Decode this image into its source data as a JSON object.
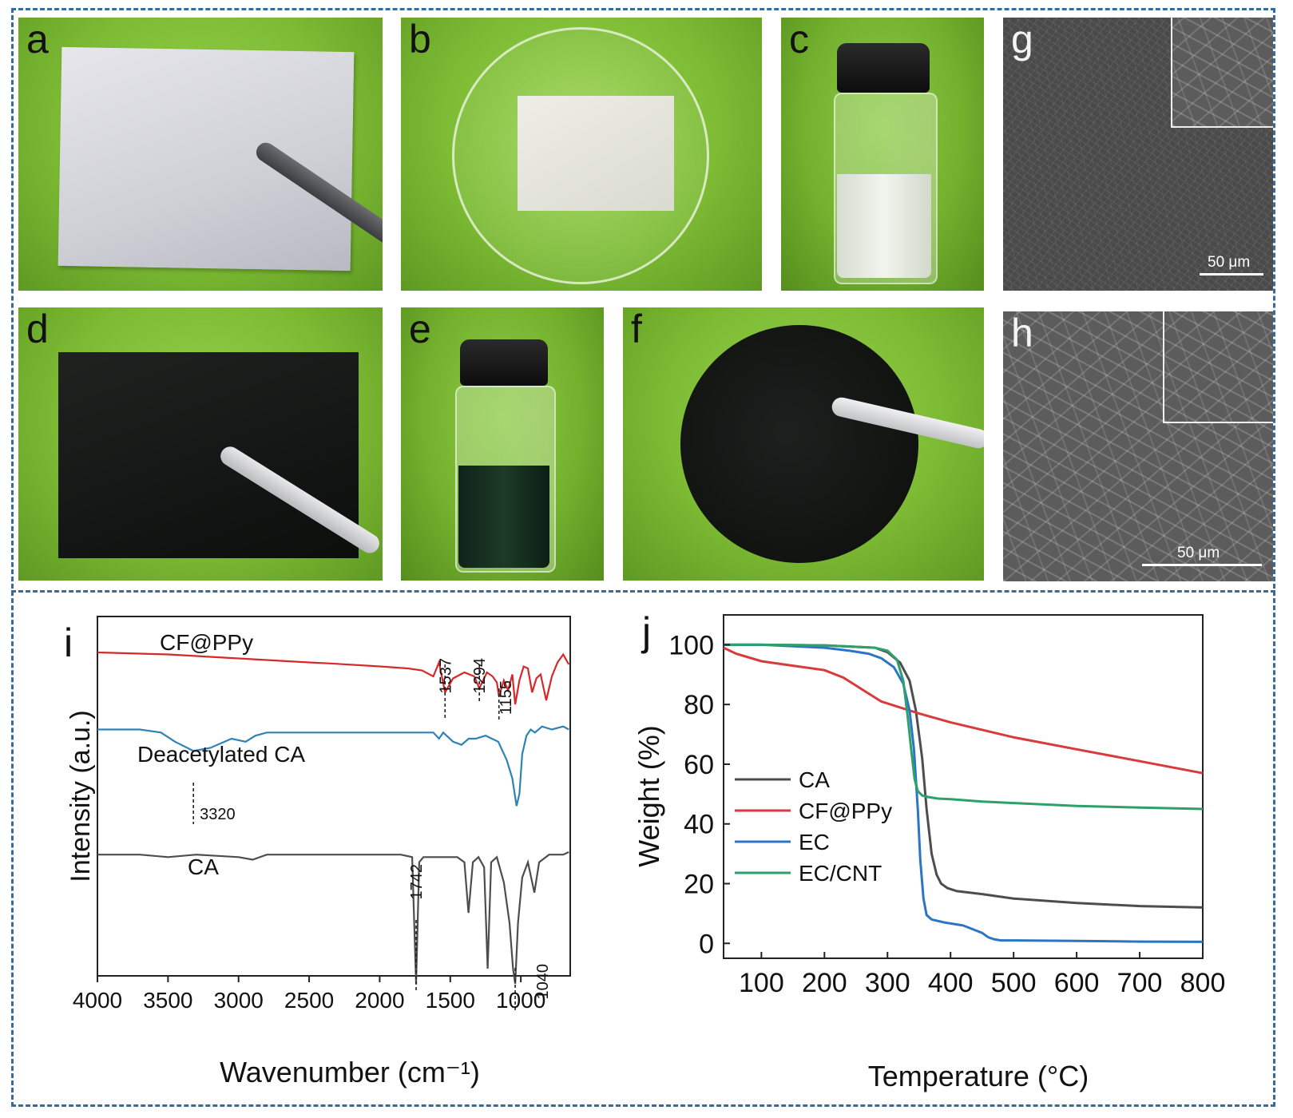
{
  "panels": {
    "a": {
      "label": "a"
    },
    "b": {
      "label": "b"
    },
    "c": {
      "label": "c"
    },
    "d": {
      "label": "d"
    },
    "e": {
      "label": "e"
    },
    "f": {
      "label": "f"
    },
    "g": {
      "label": "g",
      "scale": "50 μm"
    },
    "h": {
      "label": "h",
      "scale": "50 μm"
    },
    "i": {
      "label": "i"
    },
    "j": {
      "label": "j"
    }
  },
  "chart_data": [
    {
      "type": "line",
      "panel": "i",
      "xlabel": "Wavenumber (cm⁻¹)",
      "ylabel": "Intensity (a.u.)",
      "x_reversed": true,
      "xlim": [
        4000,
        650
      ],
      "xticks": [
        4000,
        3500,
        3000,
        2500,
        2000,
        1500,
        1000
      ],
      "series": [
        {
          "name": "CF@PPy",
          "color": "#d42a2a",
          "x": [
            4000,
            3500,
            3000,
            2500,
            2350,
            2000,
            1800,
            1700,
            1620,
            1580,
            1537,
            1480,
            1400,
            1330,
            1294,
            1240,
            1200,
            1170,
            1155,
            1120,
            1090,
            1060,
            1040,
            1010,
            980,
            950,
            920,
            890,
            860,
            820,
            780,
            740,
            700,
            660
          ],
          "y": [
            86,
            85,
            83,
            81,
            80.5,
            79,
            78,
            77,
            74,
            81,
            66,
            73,
            76,
            74,
            68,
            76,
            74,
            71,
            64,
            72,
            67,
            75,
            60,
            72,
            79,
            78,
            66,
            73,
            75,
            62,
            74,
            81,
            85,
            80
          ]
        },
        {
          "name": "Deacetylated CA",
          "color": "#2f82b5",
          "x": [
            4000,
            3700,
            3550,
            3450,
            3320,
            3200,
            3050,
            2950,
            2880,
            2800,
            2500,
            2000,
            1700,
            1620,
            1580,
            1550,
            1480,
            1420,
            1370,
            1320,
            1250,
            1160,
            1100,
            1060,
            1030,
            1010,
            990,
            960,
            930,
            900,
            850,
            780,
            700,
            660
          ],
          "y": [
            52,
            52,
            51,
            48,
            45,
            46,
            49,
            48,
            50,
            51,
            51,
            51,
            51,
            51,
            49,
            51,
            48,
            47,
            49,
            49,
            50,
            48,
            42,
            36,
            27,
            31,
            44,
            50,
            52,
            51,
            53,
            52,
            53,
            52
          ]
        },
        {
          "name": "CA",
          "color": "#4d4d4d",
          "x": [
            4000,
            3700,
            3500,
            3300,
            3000,
            2900,
            2800,
            2500,
            2000,
            1850,
            1770,
            1742,
            1720,
            1690,
            1600,
            1450,
            1400,
            1371,
            1340,
            1300,
            1260,
            1235,
            1210,
            1170,
            1120,
            1080,
            1055,
            1040,
            1020,
            990,
            950,
            904,
            870,
            800,
            700,
            660
          ],
          "y": [
            25.5,
            25.5,
            25,
            25.5,
            25,
            24.5,
            25.5,
            25.5,
            25.5,
            25.5,
            25,
            0,
            24,
            25,
            25,
            25,
            24,
            14,
            24,
            25,
            23,
            3,
            24,
            25,
            20,
            12,
            3,
            0,
            12,
            21,
            24,
            18,
            24,
            25.5,
            25.5,
            26
          ]
        }
      ],
      "annotations": [
        {
          "text": "1537",
          "x": 1537
        },
        {
          "text": "1294",
          "x": 1294
        },
        {
          "text": "1155",
          "x": 1155
        },
        {
          "text": "3320",
          "x": 3320
        },
        {
          "text": "1742",
          "x": 1742
        },
        {
          "text": "1040",
          "x": 1040
        }
      ]
    },
    {
      "type": "line",
      "panel": "j",
      "xlabel": "Temperature (°C)",
      "ylabel": "Weight (%)",
      "xlim": [
        40,
        800
      ],
      "ylim": [
        -5,
        110
      ],
      "xticks": [
        100,
        200,
        300,
        400,
        500,
        600,
        700,
        800
      ],
      "yticks": [
        0,
        20,
        40,
        60,
        80,
        100
      ],
      "legend": "center-left",
      "series": [
        {
          "name": "CA",
          "color": "#4d4d4d",
          "x": [
            40,
            100,
            200,
            280,
            300,
            320,
            335,
            345,
            355,
            362,
            370,
            378,
            385,
            395,
            410,
            450,
            500,
            600,
            700,
            800
          ],
          "y": [
            100,
            100,
            99.8,
            99,
            97.5,
            94,
            88,
            78,
            62,
            45,
            30,
            23,
            20,
            18.5,
            17.5,
            16.5,
            15,
            13.5,
            12.5,
            12
          ]
        },
        {
          "name": "CF@PPy",
          "color": "#d93a3a",
          "x": [
            40,
            60,
            100,
            150,
            200,
            230,
            260,
            290,
            320,
            350,
            400,
            500,
            600,
            700,
            800
          ],
          "y": [
            99,
            97,
            94.5,
            93,
            91.5,
            89,
            85,
            81,
            79,
            77,
            74,
            69,
            65,
            61,
            57
          ]
        },
        {
          "name": "EC",
          "color": "#2c75c4",
          "x": [
            40,
            100,
            200,
            240,
            270,
            290,
            310,
            325,
            335,
            342,
            348,
            352,
            357,
            362,
            370,
            390,
            420,
            450,
            460,
            470,
            480,
            500,
            600,
            700,
            800
          ],
          "y": [
            100,
            100,
            99,
            98,
            97,
            95.5,
            92.5,
            87,
            78,
            65,
            45,
            28,
            15,
            9.5,
            8,
            7,
            6,
            3.5,
            2,
            1.3,
            1,
            1,
            0.8,
            0.6,
            0.5
          ]
        },
        {
          "name": "EC/CNT",
          "color": "#2ea06a",
          "x": [
            40,
            100,
            200,
            280,
            300,
            315,
            325,
            332,
            338,
            343,
            348,
            355,
            365,
            380,
            400,
            450,
            500,
            600,
            700,
            800
          ],
          "y": [
            100,
            100,
            99.8,
            99,
            98,
            95,
            88,
            76,
            64,
            55,
            51,
            49.5,
            49,
            48.5,
            48.3,
            47.5,
            47,
            46,
            45.5,
            45
          ]
        }
      ]
    }
  ]
}
